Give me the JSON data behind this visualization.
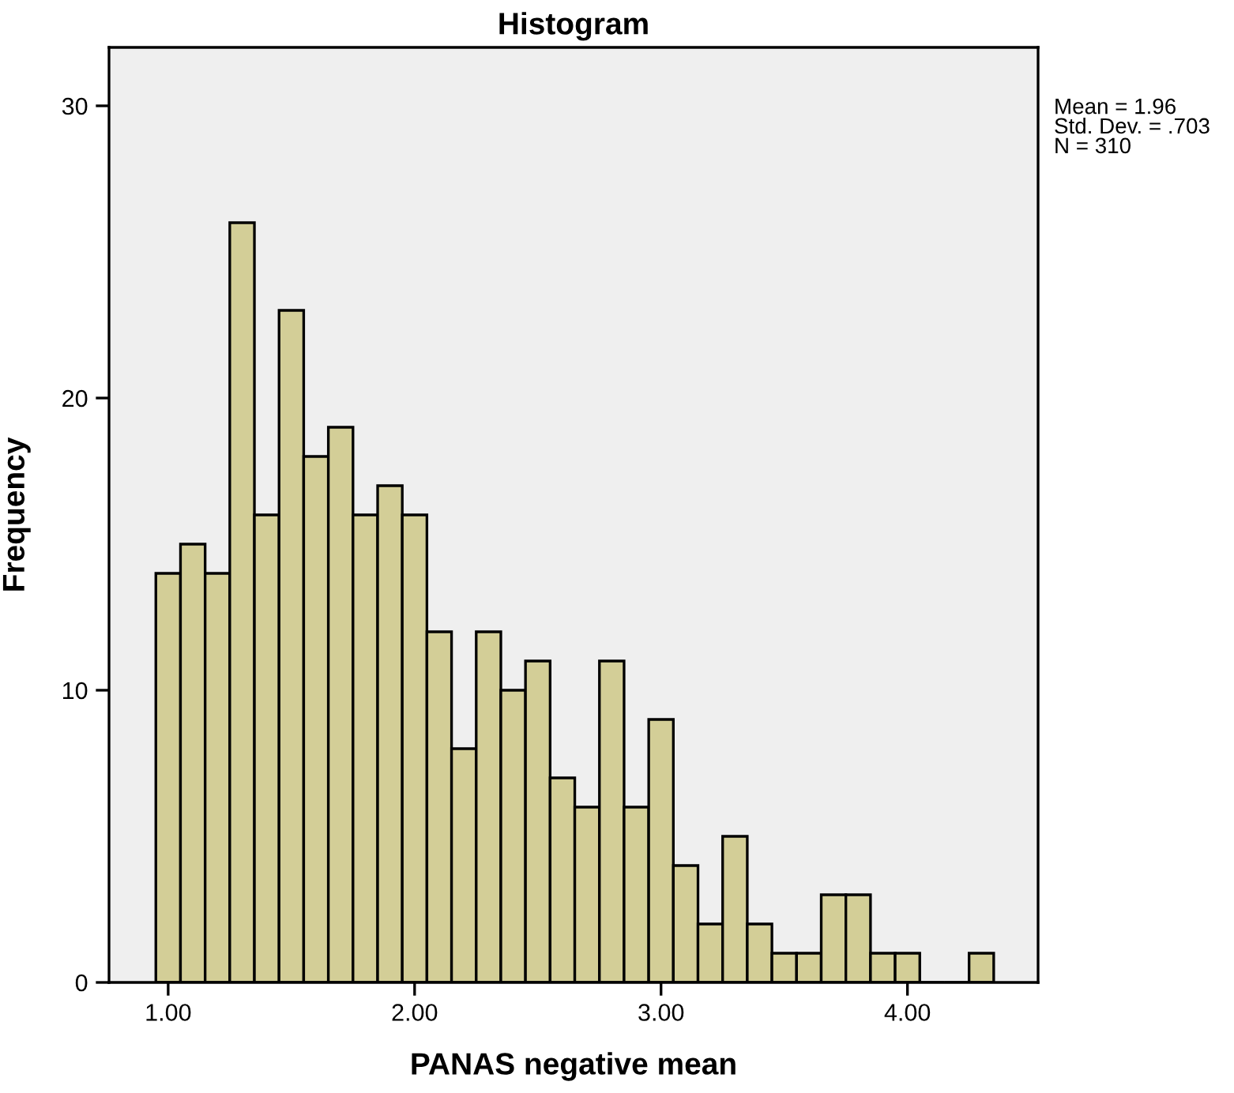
{
  "chart_data": {
    "type": "histogram",
    "title": "Histogram",
    "xlabel": "PANAS negative mean",
    "ylabel": "Frequency",
    "bins": [
      0.95,
      1.05,
      1.15,
      1.25,
      1.35,
      1.45,
      1.55,
      1.65,
      1.75,
      1.85,
      1.95,
      2.05,
      2.15,
      2.25,
      2.35,
      2.45,
      2.55,
      2.65,
      2.75,
      2.85,
      2.95,
      3.05,
      3.15,
      3.25,
      3.35,
      3.45,
      3.55,
      3.65,
      3.75,
      3.85,
      3.95,
      4.05,
      4.15,
      4.25,
      4.35
    ],
    "values": [
      14,
      15,
      14,
      26,
      16,
      23,
      18,
      19,
      16,
      17,
      16,
      12,
      8,
      12,
      10,
      11,
      7,
      6,
      11,
      6,
      9,
      4,
      2,
      5,
      2,
      1,
      1,
      3,
      3,
      1,
      1,
      0,
      0,
      1
    ],
    "color": "#d3ce97",
    "xlim": [
      0.76,
      4.53
    ],
    "xticks": [
      {
        "value": 1,
        "label": "1.00"
      },
      {
        "value": 2,
        "label": "2.00"
      },
      {
        "value": 3,
        "label": "3.00"
      },
      {
        "value": 4,
        "label": "4.00"
      }
    ],
    "ylim": [
      0,
      32
    ],
    "yticks": [
      0,
      10,
      20,
      30
    ],
    "grid": false,
    "legend": false,
    "annotations": [
      "Mean = 1.96\nStd. Dev. = .703\nN = 310"
    ]
  }
}
